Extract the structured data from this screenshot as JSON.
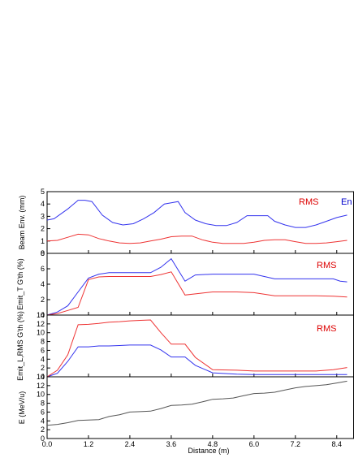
{
  "chart_data": [
    {
      "type": "line",
      "ylabel": "Beam Env. (mm)",
      "ylim": [
        0,
        5
      ],
      "yticks": [
        "0",
        "1",
        "2",
        "3",
        "4",
        "5"
      ],
      "annotations": [
        {
          "text": "RMS",
          "color": "#dd0000"
        },
        {
          "text": "En",
          "color": "#0000cc"
        }
      ],
      "series": [
        {
          "color": "#3333ee",
          "x": [
            0,
            0.2,
            0.6,
            0.9,
            1.1,
            1.3,
            1.6,
            1.9,
            2.2,
            2.5,
            2.8,
            3.1,
            3.4,
            3.6,
            3.8,
            4.0,
            4.3,
            4.6,
            4.9,
            5.2,
            5.5,
            5.8,
            6.1,
            6.4,
            6.6,
            6.9,
            7.2,
            7.5,
            7.8,
            8.1,
            8.4,
            8.7
          ],
          "y": [
            2.7,
            2.8,
            3.6,
            4.3,
            4.3,
            4.2,
            3.1,
            2.5,
            2.3,
            2.4,
            2.8,
            3.3,
            4.0,
            4.1,
            4.2,
            3.3,
            2.7,
            2.4,
            2.25,
            2.25,
            2.5,
            3.05,
            3.05,
            3.05,
            2.6,
            2.3,
            2.1,
            2.1,
            2.3,
            2.6,
            2.9,
            3.1
          ]
        },
        {
          "color": "#ee3333",
          "x": [
            0,
            0.3,
            0.6,
            0.9,
            1.2,
            1.5,
            1.8,
            2.1,
            2.4,
            2.7,
            3.0,
            3.3,
            3.6,
            3.9,
            4.2,
            4.5,
            4.8,
            5.1,
            5.4,
            5.7,
            6.0,
            6.3,
            6.6,
            6.9,
            7.2,
            7.5,
            7.8,
            8.1,
            8.4,
            8.7
          ],
          "y": [
            1.0,
            1.05,
            1.3,
            1.55,
            1.5,
            1.2,
            1.0,
            0.85,
            0.8,
            0.85,
            1.0,
            1.15,
            1.35,
            1.4,
            1.4,
            1.1,
            0.9,
            0.8,
            0.8,
            0.8,
            0.9,
            1.05,
            1.1,
            1.1,
            0.95,
            0.8,
            0.8,
            0.85,
            0.95,
            1.05
          ]
        }
      ]
    },
    {
      "type": "line",
      "ylabel": "Emit_T G'th (%)",
      "ylim": [
        0,
        8
      ],
      "yticks": [
        "0",
        "2",
        "4",
        "6",
        "8"
      ],
      "annotations": [
        {
          "text": "RMS",
          "color": "#dd0000"
        }
      ],
      "series": [
        {
          "color": "#3333ee",
          "x": [
            0,
            0.3,
            0.6,
            0.9,
            1.2,
            1.5,
            1.8,
            2.1,
            2.4,
            2.7,
            3.0,
            3.3,
            3.6,
            4.0,
            4.3,
            4.8,
            5.5,
            6.0,
            6.6,
            7.2,
            7.8,
            8.3,
            8.5,
            8.7
          ],
          "y": [
            0,
            0.4,
            1.2,
            3.0,
            4.8,
            5.3,
            5.5,
            5.5,
            5.5,
            5.5,
            5.5,
            6.2,
            7.3,
            4.4,
            5.2,
            5.3,
            5.3,
            5.3,
            4.7,
            4.7,
            4.7,
            4.7,
            4.4,
            4.3
          ]
        },
        {
          "color": "#ee3333",
          "x": [
            0,
            0.3,
            0.6,
            0.9,
            1.2,
            1.5,
            1.8,
            2.1,
            2.4,
            2.7,
            3.0,
            3.3,
            3.6,
            4.0,
            4.3,
            4.8,
            5.5,
            6.0,
            6.6,
            7.2,
            7.8,
            8.3,
            8.7
          ],
          "y": [
            0,
            0.2,
            0.6,
            1.0,
            4.6,
            4.95,
            5.0,
            5.0,
            5.0,
            5.0,
            5.0,
            5.25,
            5.6,
            2.6,
            2.75,
            3.0,
            3.0,
            2.9,
            2.5,
            2.5,
            2.5,
            2.45,
            2.35
          ]
        }
      ]
    },
    {
      "type": "line",
      "ylabel": "Emit_L,RMS G'th (%)",
      "ylim": [
        0,
        14
      ],
      "yticks": [
        "0",
        "2",
        "4",
        "6",
        "8",
        "10",
        "12",
        "14"
      ],
      "annotations": [
        {
          "text": "RMS",
          "color": "#dd0000"
        }
      ],
      "series": [
        {
          "color": "#3333ee",
          "x": [
            0,
            0.3,
            0.6,
            0.9,
            1.2,
            1.5,
            1.8,
            2.1,
            2.4,
            2.7,
            3.0,
            3.3,
            3.6,
            4.0,
            4.3,
            4.8,
            5.5,
            6.0,
            6.6,
            7.2,
            7.8,
            8.3,
            8.7
          ],
          "y": [
            0,
            0.8,
            3.5,
            6.8,
            6.8,
            7.0,
            7.0,
            7.1,
            7.2,
            7.2,
            7.2,
            6.1,
            4.5,
            4.5,
            2.6,
            0.9,
            0.6,
            0.5,
            0.5,
            0.5,
            0.5,
            0.5,
            0.5
          ]
        },
        {
          "color": "#ee3333",
          "x": [
            0,
            0.3,
            0.6,
            0.9,
            1.2,
            1.5,
            1.8,
            2.1,
            2.4,
            2.7,
            3.0,
            3.3,
            3.6,
            4.0,
            4.3,
            4.8,
            5.5,
            6.0,
            6.6,
            7.2,
            7.8,
            8.3,
            8.7
          ],
          "y": [
            0,
            1.5,
            5.0,
            11.8,
            11.9,
            12.1,
            12.4,
            12.5,
            12.7,
            12.8,
            12.9,
            10.0,
            7.4,
            7.4,
            4.4,
            1.6,
            1.5,
            1.3,
            1.3,
            1.3,
            1.3,
            1.6,
            2.1
          ]
        }
      ]
    },
    {
      "type": "line",
      "ylabel": "E (MeV/u)",
      "xlabel": "Distance (m)",
      "ylim": [
        0,
        14
      ],
      "yticks": [
        "0",
        "2",
        "4",
        "6",
        "8",
        "10",
        "12",
        "14"
      ],
      "xlim": [
        0,
        8.9
      ],
      "xticks": [
        "0.0",
        "1.2",
        "2.4",
        "3.6",
        "4.8",
        "6.0",
        "7.2",
        "8.4"
      ],
      "series": [
        {
          "color": "#555555",
          "x": [
            0,
            0.3,
            0.6,
            0.9,
            1.2,
            1.5,
            1.8,
            2.1,
            2.4,
            2.7,
            3.0,
            3.3,
            3.6,
            3.9,
            4.2,
            4.5,
            4.8,
            5.1,
            5.4,
            5.7,
            6.0,
            6.3,
            6.6,
            6.9,
            7.2,
            7.5,
            7.8,
            8.1,
            8.4,
            8.7
          ],
          "y": [
            3.0,
            3.2,
            3.6,
            4.1,
            4.2,
            4.3,
            5.0,
            5.4,
            6.0,
            6.1,
            6.2,
            6.8,
            7.5,
            7.6,
            7.8,
            8.3,
            8.9,
            9.0,
            9.2,
            9.7,
            10.2,
            10.3,
            10.5,
            11.0,
            11.5,
            11.8,
            12.0,
            12.2,
            12.6,
            13.0
          ]
        }
      ]
    }
  ]
}
